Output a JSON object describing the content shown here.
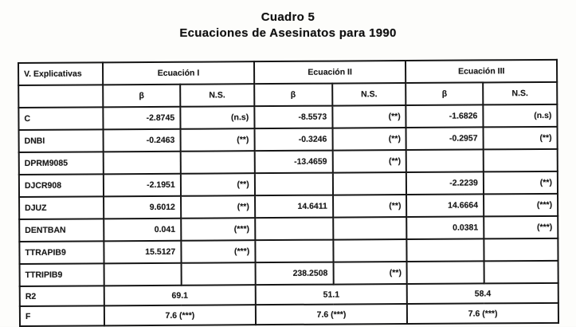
{
  "page": {
    "title_line1": "Cuadro 5",
    "title_line2": "Ecuaciones de Asesinatos para 1990"
  },
  "table": {
    "corner_header": "V. Explicativas",
    "equations": [
      "Ecuación I",
      "Ecuación II",
      "Ecuación III"
    ],
    "sub": {
      "beta": "β",
      "ns": "N.S."
    },
    "rows": [
      {
        "label": "C",
        "cells": [
          "-2.8745",
          "(n.s)",
          "-8.5573",
          "(**)",
          "-1.6826",
          "(n.s)"
        ]
      },
      {
        "label": "DNBI",
        "cells": [
          "-0.2463",
          "(**)",
          "-0.3246",
          "(**)",
          "-0.2957",
          "(**)"
        ]
      },
      {
        "label": "DPRM9085",
        "cells": [
          "",
          "",
          "-13.4659",
          "(**)",
          "",
          ""
        ]
      },
      {
        "label": "DJCR908",
        "cells": [
          "-2.1951",
          "(**)",
          "",
          "",
          "-2.2239",
          "(**)"
        ]
      },
      {
        "label": "DJUZ",
        "cells": [
          "9.6012",
          "(**)",
          "14.6411",
          "(**)",
          "14.6664",
          "(***)"
        ]
      },
      {
        "label": "DENTBAN",
        "cells": [
          "0.041",
          "(***)",
          "",
          "",
          "0.0381",
          "(***)"
        ]
      },
      {
        "label": "TTRAPIB9",
        "cells": [
          "15.5127",
          "(***)",
          "",
          "",
          "",
          ""
        ]
      },
      {
        "label": "TTRIPIB9",
        "cells": [
          "",
          "",
          "238.2508",
          "(**)",
          "",
          ""
        ]
      }
    ],
    "summary_rows": [
      {
        "label": "R2",
        "cells": [
          "69.1",
          "51.1",
          "58.4"
        ]
      },
      {
        "label": "F",
        "cells": [
          "7.6  (***)",
          "7.6  (***)",
          "7.6  (***)"
        ]
      }
    ]
  }
}
